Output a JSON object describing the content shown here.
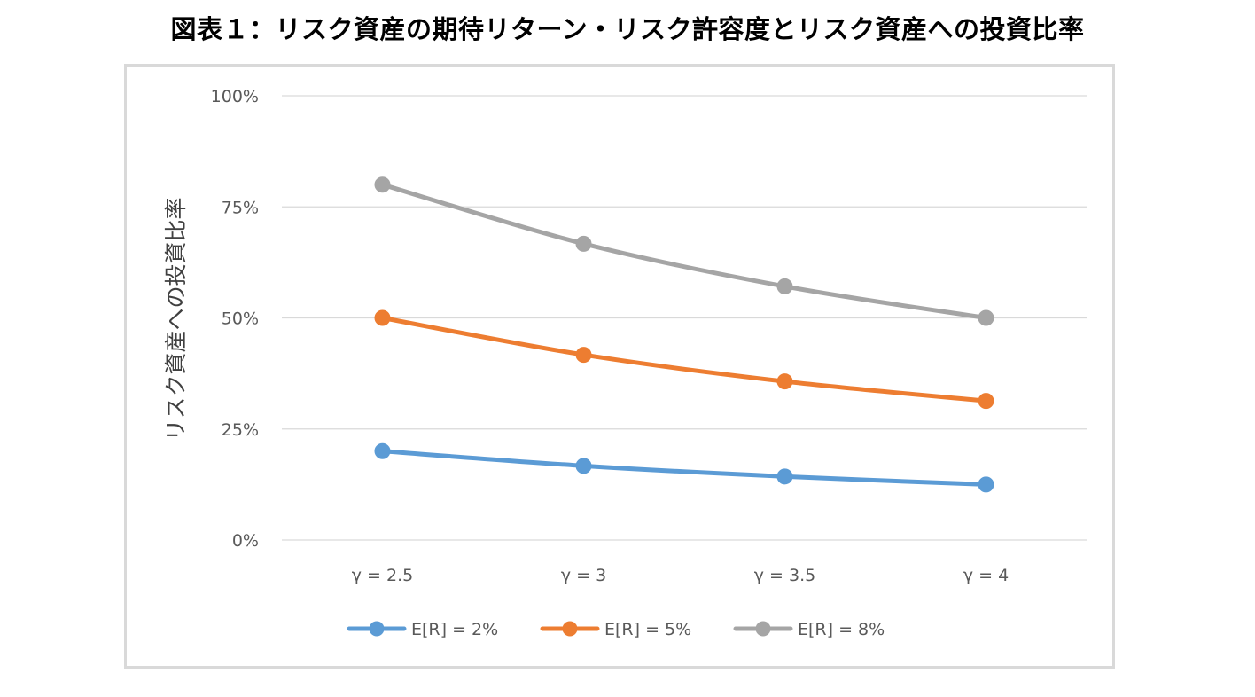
{
  "title": "図表１：リスク資産の期待リターン・リスク許容度とリスク資産への投資比率",
  "chart_data": {
    "type": "line",
    "categories": [
      "γ = 2.5",
      "γ = 3",
      "γ = 3.5",
      "γ = 4"
    ],
    "ylabel": "リスク資産への投資比率",
    "xlabel": "",
    "ylim": [
      0,
      100
    ],
    "yticks": [
      0,
      25,
      50,
      75,
      100
    ],
    "ytick_labels": [
      "0%",
      "25%",
      "50%",
      "75%",
      "100%"
    ],
    "grid": true,
    "legend_position": "bottom",
    "series": [
      {
        "name": "E[R] = 2%",
        "color": "#5b9bd5",
        "values": [
          20.0,
          16.7,
          14.3,
          12.5
        ]
      },
      {
        "name": "E[R] = 5%",
        "color": "#ed7d31",
        "values": [
          50.0,
          41.7,
          35.7,
          31.3
        ]
      },
      {
        "name": "E[R] = 8%",
        "color": "#a5a5a5",
        "values": [
          80.0,
          66.7,
          57.1,
          50.0
        ]
      }
    ]
  }
}
